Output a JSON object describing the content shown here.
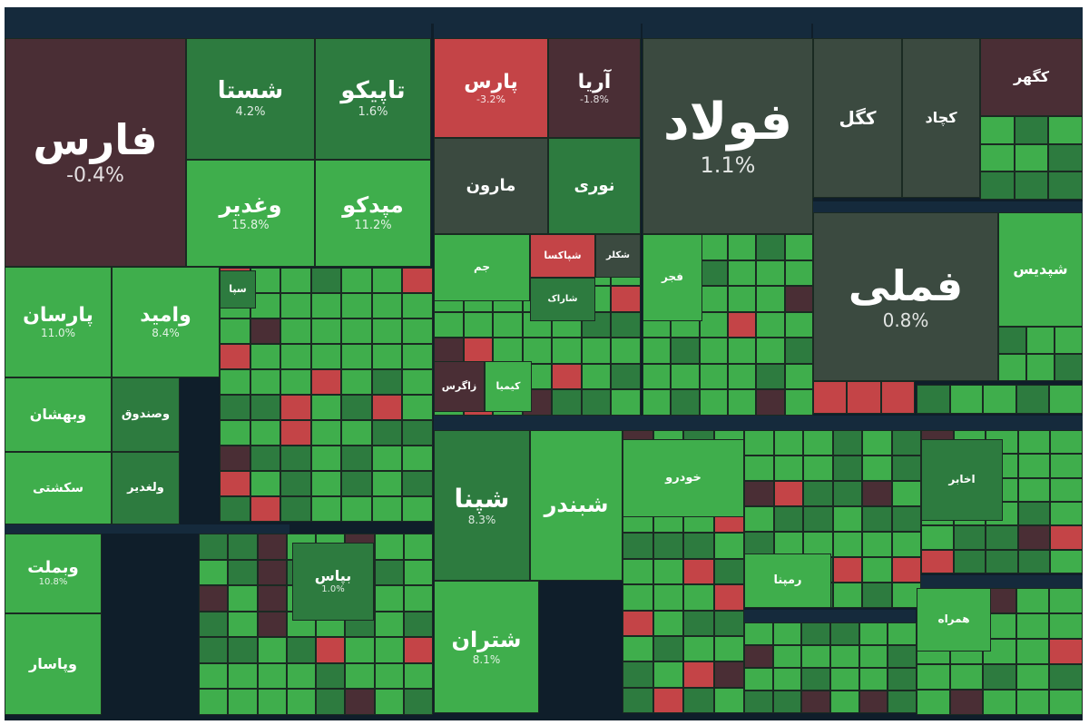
{
  "chart_data": {
    "type": "treemap",
    "colors": {
      "up": "#3fae4c",
      "up_dark": "#2d7b3f",
      "flat": "#3b4a40",
      "down_dark": "#4a2e35",
      "down": "#c44447",
      "header": "#152a3c"
    },
    "stocks": [
      {
        "name": "فارس",
        "pct": "-0.4%"
      },
      {
        "name": "شستا",
        "pct": "4.2%"
      },
      {
        "name": "تاپیکو",
        "pct": "1.6%"
      },
      {
        "name": "وغدیر",
        "pct": "15.8%"
      },
      {
        "name": "مپدکو",
        "pct": "11.2%"
      },
      {
        "name": "پارسان",
        "pct": "11.0%"
      },
      {
        "name": "وامید",
        "pct": "8.4%"
      },
      {
        "name": "وبهشان",
        "pct": ""
      },
      {
        "name": "وصندوق",
        "pct": ""
      },
      {
        "name": "سکشتی",
        "pct": ""
      },
      {
        "name": "ولغدیر",
        "pct": ""
      },
      {
        "name": "وبملت",
        "pct": "10.8%"
      },
      {
        "name": "وپاسار",
        "pct": ""
      },
      {
        "name": "بپاس",
        "pct": "1.0%"
      },
      {
        "name": "پارس",
        "pct": "-3.2%"
      },
      {
        "name": "آریا",
        "pct": "-1.8%"
      },
      {
        "name": "مارون",
        "pct": ""
      },
      {
        "name": "نوری",
        "pct": ""
      },
      {
        "name": "فولاد",
        "pct": "1.1%"
      },
      {
        "name": "کگل",
        "pct": ""
      },
      {
        "name": "کچاد",
        "pct": ""
      },
      {
        "name": "کگهر",
        "pct": ""
      },
      {
        "name": "فملی",
        "pct": "0.8%"
      },
      {
        "name": "شپدیس",
        "pct": ""
      },
      {
        "name": "شپنا",
        "pct": "8.3%"
      },
      {
        "name": "شبندر",
        "pct": ""
      },
      {
        "name": "شتران",
        "pct": "8.1%"
      },
      {
        "name": "جم",
        "pct": ""
      },
      {
        "name": "شپاکسا",
        "pct": ""
      },
      {
        "name": "شکلر",
        "pct": ""
      },
      {
        "name": "شاراک",
        "pct": ""
      },
      {
        "name": "زاگرس",
        "pct": ""
      },
      {
        "name": "کیمیا",
        "pct": ""
      },
      {
        "name": "فجر",
        "pct": ""
      },
      {
        "name": "خودرو",
        "pct": ""
      },
      {
        "name": "رمپنا",
        "pct": ""
      },
      {
        "name": "اخابر",
        "pct": ""
      },
      {
        "name": "همراه",
        "pct": ""
      },
      {
        "name": "سپا",
        "pct": ""
      },
      {
        "name": "فارس",
        "pct": ""
      },
      {
        "name": "وپاسار",
        "pct": ""
      }
    ]
  }
}
